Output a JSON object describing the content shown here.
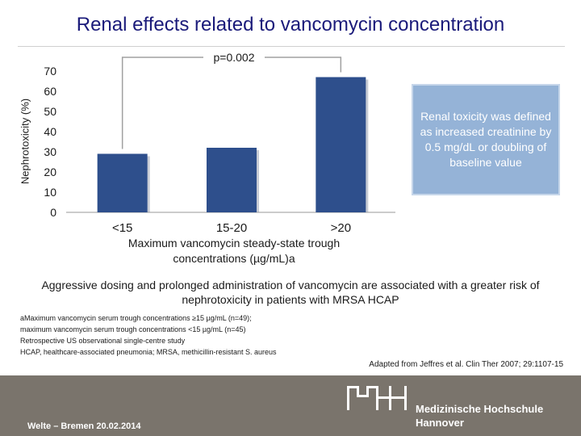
{
  "slide": {
    "title": "Renal effects related to vancomycin concentration",
    "callout": "Renal toxicity was defined as increased creatinine by 0.5 mg/dL or doubling of baseline value",
    "summary": "Aggressive dosing and prolonged administration of vancomycin are associated with a greater risk of nephrotoxicity in patients with MRSA HCAP",
    "notes": [
      "aMaximum vancomycin serum trough concentrations ≥15 µg/mL (n=49);",
      "maximum vancomycin serum trough concentrations <15 µg/mL (n=45)",
      "Retrospective US observational single-centre study",
      "HCAP, healthcare-associated pneumonia; MRSA, methicillin-resistant S. aureus"
    ],
    "source": "Adapted from Jeffres et al. Clin Ther 2007; 29:1107-15"
  },
  "footer": {
    "presenter": "Welte – Bremen 20.02.2014",
    "logo_text": "MHH",
    "institution_line1": "Medizinische Hochschule",
    "institution_line2": "Hannover",
    "background": "#7a746c"
  },
  "chart_data": {
    "type": "bar",
    "categories": [
      "<15",
      "15-20",
      ">20"
    ],
    "values": [
      29,
      32,
      67
    ],
    "ylabel": "Nephrotoxicity (%)",
    "xlabel": "Maximum vancomycin steady-state trough concentrations (µg/mL)a",
    "ylim": [
      0,
      70
    ],
    "yticks": [
      0,
      10,
      20,
      30,
      40,
      50,
      60,
      70
    ],
    "annotation": "p=0.002",
    "bar_color": "#2e4f8c",
    "grid": false
  }
}
